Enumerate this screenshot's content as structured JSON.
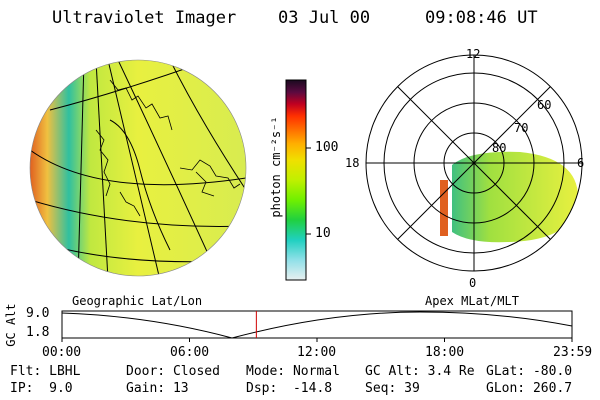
{
  "header": {
    "instrument": "Ultraviolet Imager",
    "date": "03 Jul 00",
    "time": "09:08:46 UT"
  },
  "colorbar": {
    "unit_label": "photon cm⁻²s⁻¹",
    "ticks": [
      "100",
      "10"
    ],
    "colors": [
      "#1a0a20",
      "#5a0a40",
      "#c00020",
      "#ff3000",
      "#ff7000",
      "#ffb000",
      "#f0e000",
      "#c0f000",
      "#70f000",
      "#20d040",
      "#20d0c0",
      "#90e0e8",
      "#e8f0f0"
    ]
  },
  "left_image": {
    "label": "Geographic Lat/Lon"
  },
  "polar_plot": {
    "label": "Apex MLat/MLT",
    "mlt_labels": {
      "top": "12",
      "left": "18",
      "right": "6",
      "bottom": "0"
    },
    "lat_labels": [
      "60",
      "70",
      "80"
    ]
  },
  "altitude_strip": {
    "ylabel": "GC Alt",
    "yticks": [
      "9.0",
      "1.8"
    ],
    "xticks": [
      "00:00",
      "06:00",
      "12:00",
      "18:00",
      "23:59"
    ],
    "current_time_hours": 9.146
  },
  "info": {
    "filter": "Flt: LBHL",
    "ip": "IP:  9.0",
    "door": "Door: Closed",
    "gain": "Gain: 13",
    "mode": "Mode: Normal",
    "dsp": "Dsp:  -14.8",
    "gc_alt": "GC Alt: 3.4 Re",
    "seq": "Seq: 39",
    "glat": "GLat: -80.0",
    "glon": "GLon: 260.7"
  }
}
